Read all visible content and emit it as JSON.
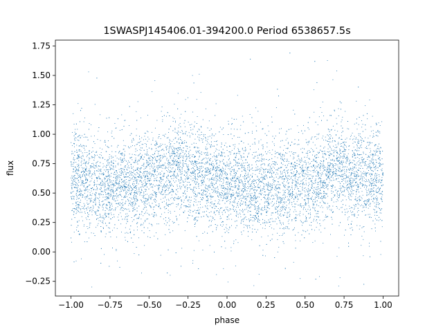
{
  "chart_data": {
    "type": "scatter",
    "title": "1SWASPJ145406.01-394200.0 Period 6538657.5s",
    "xlabel": "phase",
    "ylabel": "flux",
    "xlim": [
      -1.1,
      1.1
    ],
    "ylim": [
      -0.375,
      1.8
    ],
    "x_ticks": [
      -1.0,
      -0.75,
      -0.5,
      -0.25,
      0.0,
      0.25,
      0.5,
      0.75,
      1.0
    ],
    "x_tick_labels": [
      "−1.00",
      "−0.75",
      "−0.50",
      "−0.25",
      "0.00",
      "0.25",
      "0.50",
      "0.75",
      "1.00"
    ],
    "y_ticks": [
      -0.25,
      0.0,
      0.25,
      0.5,
      0.75,
      1.0,
      1.25,
      1.5,
      1.75
    ],
    "y_tick_labels": [
      "−0.25",
      "0.00",
      "0.25",
      "0.50",
      "0.75",
      "1.00",
      "1.25",
      "1.50",
      "1.75"
    ],
    "grid": false,
    "marker_color": "#1f77b4",
    "series": [
      {
        "x_range": [
          -1.0,
          1.0
        ],
        "mean_flux_profile": [
          [
            -1.0,
            0.62
          ],
          [
            -0.9,
            0.6
          ],
          [
            -0.8,
            0.55
          ],
          [
            -0.7,
            0.57
          ],
          [
            -0.6,
            0.6
          ],
          [
            -0.5,
            0.62
          ],
          [
            -0.4,
            0.66
          ],
          [
            -0.3,
            0.72
          ],
          [
            -0.2,
            0.63
          ],
          [
            -0.1,
            0.6
          ],
          [
            0.0,
            0.6
          ],
          [
            0.1,
            0.55
          ],
          [
            0.2,
            0.53
          ],
          [
            0.3,
            0.58
          ],
          [
            0.4,
            0.55
          ],
          [
            0.5,
            0.58
          ],
          [
            0.6,
            0.62
          ],
          [
            0.7,
            0.72
          ],
          [
            0.8,
            0.65
          ],
          [
            0.9,
            0.63
          ],
          [
            1.0,
            0.63
          ]
        ],
        "flux_spread": 0.2,
        "flux_min": -0.3,
        "flux_max": 1.72
      }
    ]
  }
}
